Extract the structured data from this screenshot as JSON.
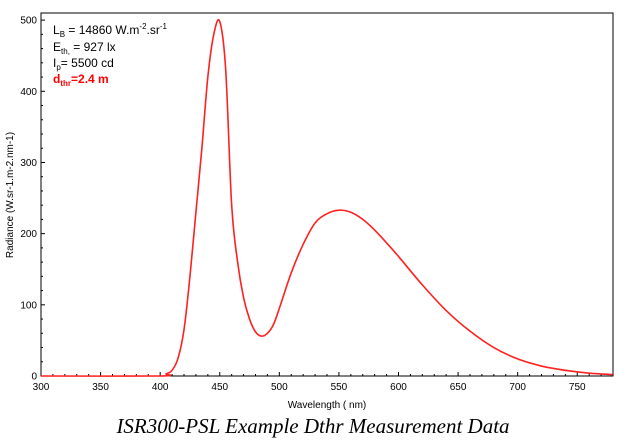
{
  "chart_data": {
    "type": "line",
    "title": "",
    "xlabel": "Wavelength ( nm)",
    "ylabel": "Radiance (W.sr-1.m-2.nm-1)",
    "xlim": [
      300,
      780
    ],
    "ylim": [
      0,
      510
    ],
    "xticks": [
      300,
      350,
      400,
      450,
      500,
      550,
      600,
      650,
      700,
      750
    ],
    "yticks": [
      0,
      100,
      200,
      300,
      400,
      500
    ],
    "grid": false,
    "series": [
      {
        "color": "#ff2020",
        "x": [
          300,
          400,
          405,
          410,
          415,
          420,
          425,
          430,
          435,
          440,
          445,
          450,
          455,
          460,
          465,
          470,
          475,
          480,
          485,
          490,
          495,
          500,
          510,
          520,
          530,
          540,
          550,
          560,
          570,
          580,
          590,
          600,
          620,
          640,
          660,
          680,
          700,
          720,
          740,
          760,
          780
        ],
        "y": [
          0,
          0,
          3,
          8,
          25,
          65,
          140,
          230,
          320,
          420,
          480,
          498,
          430,
          240,
          160,
          110,
          80,
          62,
          56,
          60,
          72,
          95,
          145,
          185,
          215,
          228,
          233,
          230,
          220,
          205,
          187,
          168,
          128,
          92,
          63,
          40,
          24,
          14,
          8,
          4,
          2
        ]
      }
    ],
    "annotations": [
      {
        "main": "L",
        "sub": "B",
        "rest": " = 14860 W.m",
        "sup1": "-2",
        "rest2": ".sr",
        "sup2": "-1"
      },
      {
        "main": "E",
        "sub": "th,",
        "rest": " = 927 lx"
      },
      {
        "main": "I",
        "sub": "p",
        "rest": "= 5500 cd"
      },
      {
        "main": "d",
        "sub": "thr",
        "rest": "=2.4 m",
        "color": "#ff0000"
      }
    ]
  },
  "caption": "ISR300-PSL Example Dthr Measurement Data"
}
